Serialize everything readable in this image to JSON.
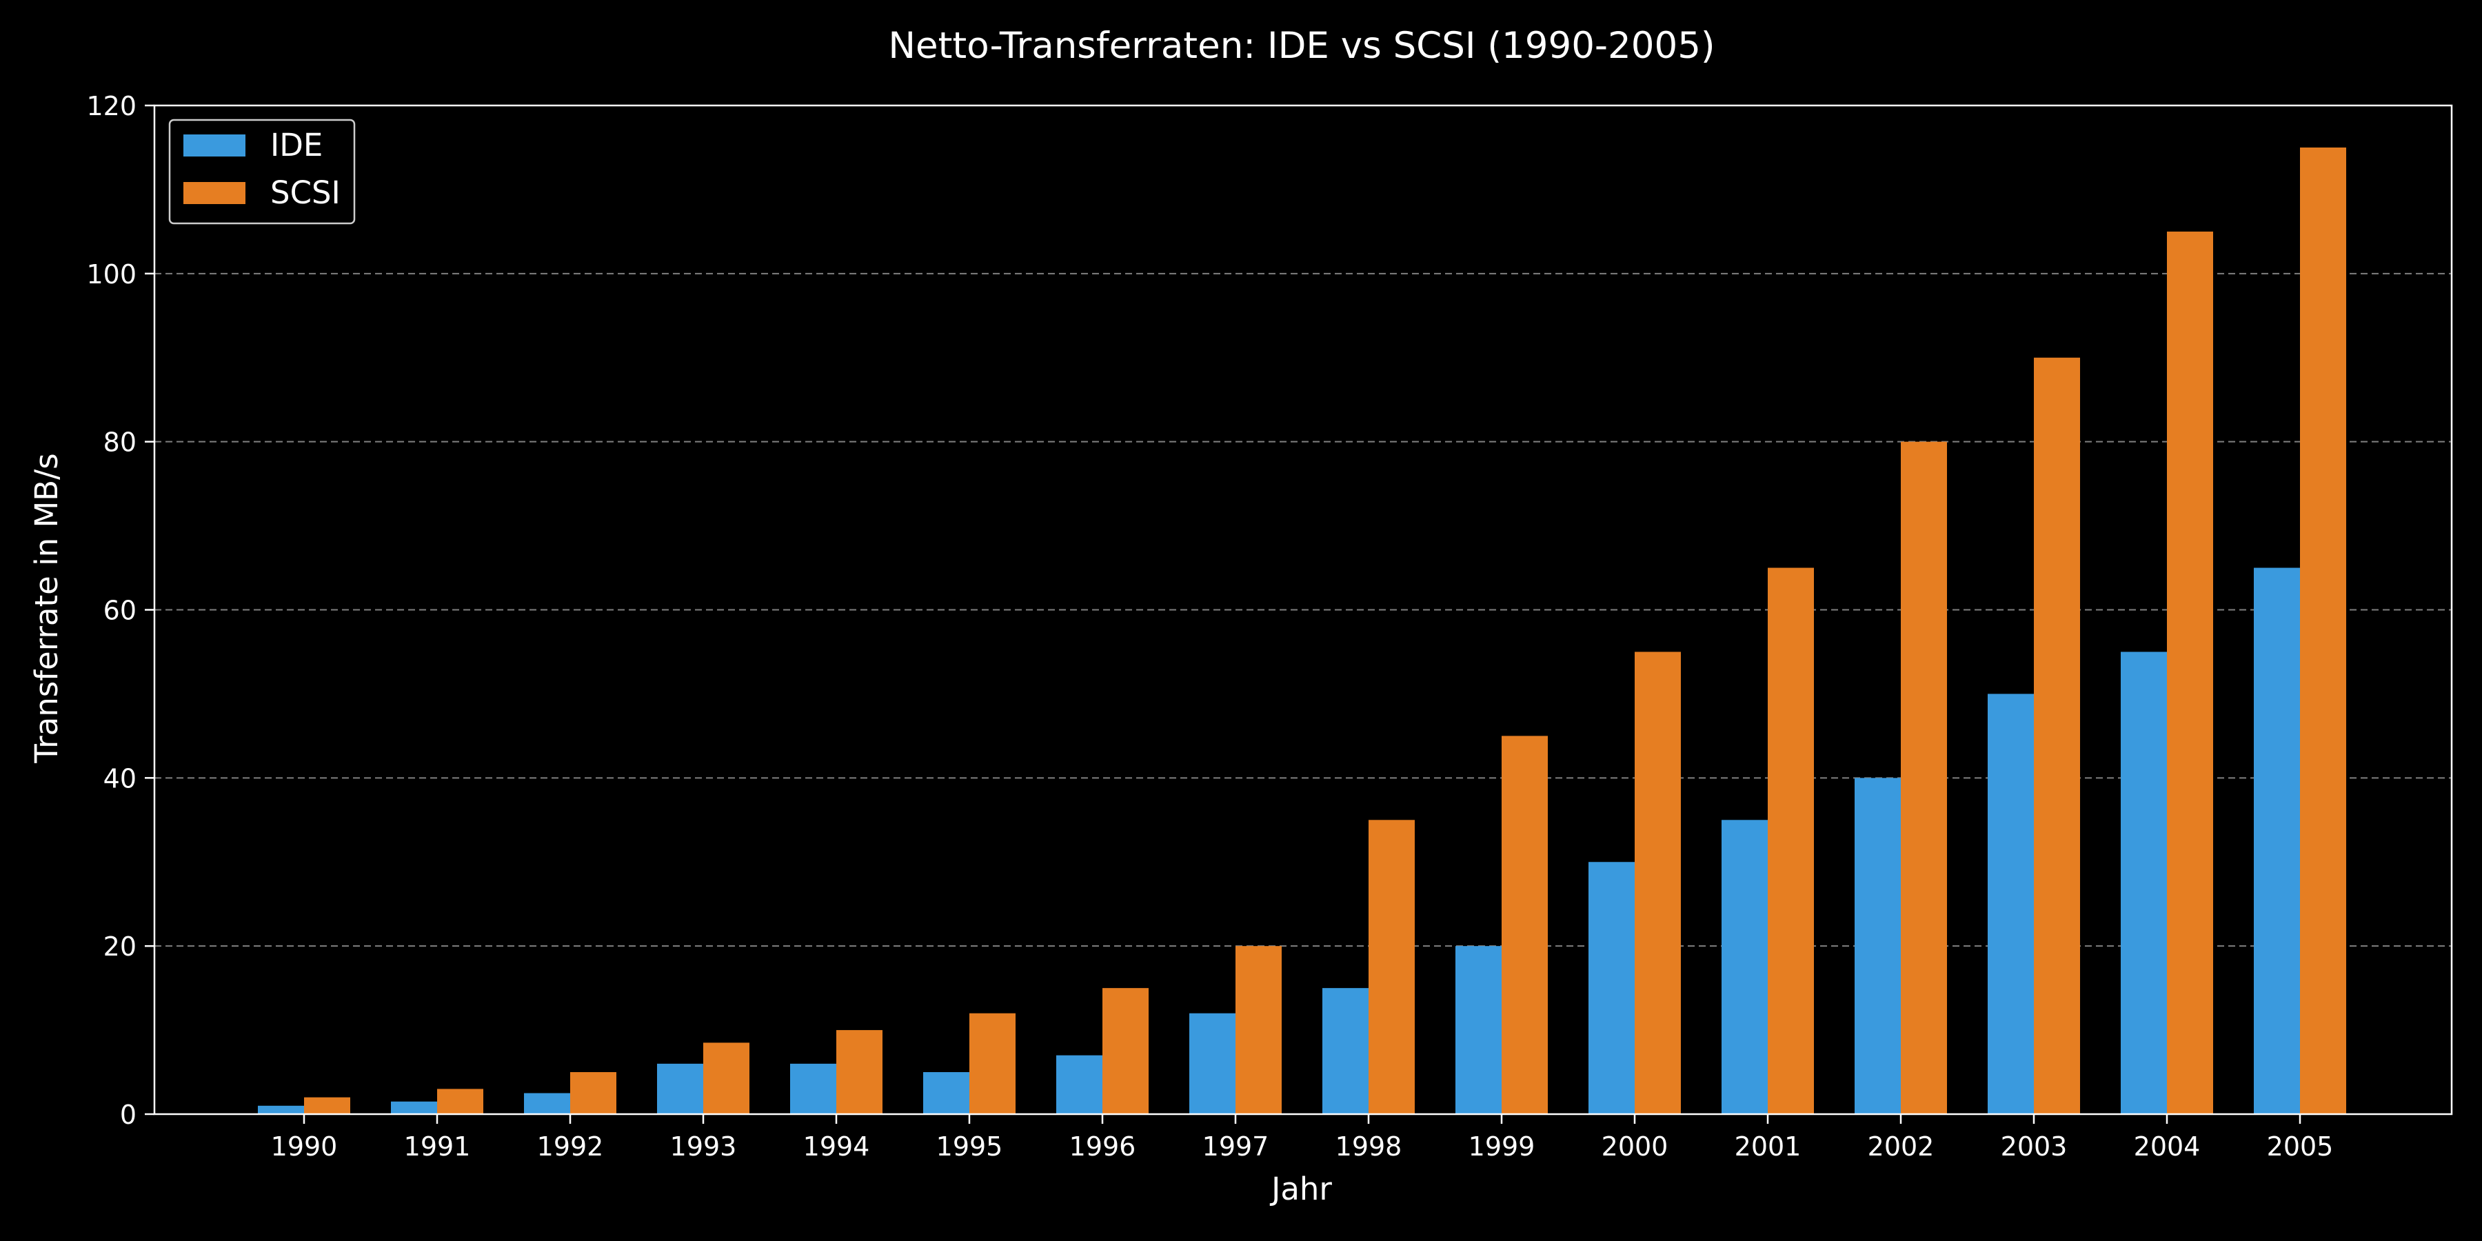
{
  "chart_data": {
    "type": "bar",
    "title": "Netto-Transferraten: IDE vs SCSI (1990-2005)",
    "xlabel": "Jahr",
    "ylabel": "Transferrate in MB/s",
    "ylim": [
      0,
      120
    ],
    "yticks": [
      0,
      20,
      40,
      60,
      80,
      100,
      120
    ],
    "grid": "y-dashed",
    "legend": "top-left",
    "categories": [
      "1990",
      "1991",
      "1992",
      "1993",
      "1994",
      "1995",
      "1996",
      "1997",
      "1998",
      "1999",
      "2000",
      "2001",
      "2002",
      "2003",
      "2004",
      "2005"
    ],
    "series": [
      {
        "name": "IDE",
        "color": "#3a9ade",
        "values": [
          1,
          1.5,
          2.5,
          6,
          6,
          5,
          7,
          12,
          15,
          20,
          30,
          35,
          40,
          50,
          55,
          65
        ]
      },
      {
        "name": "SCSI",
        "color": "#e67e22",
        "values": [
          2,
          3,
          5,
          8.5,
          10,
          12,
          15,
          20,
          35,
          45,
          55,
          65,
          80,
          90,
          105,
          115
        ]
      }
    ]
  }
}
